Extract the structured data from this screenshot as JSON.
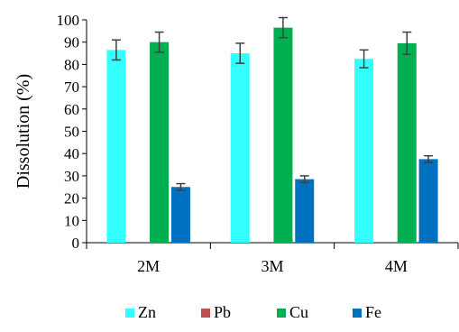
{
  "chart_data": {
    "type": "bar",
    "title": "",
    "xlabel": "",
    "ylabel": "Dissolution (%)",
    "ylim": [
      0,
      100
    ],
    "yticks": [
      0,
      10,
      20,
      30,
      40,
      50,
      60,
      70,
      80,
      90,
      100
    ],
    "categories": [
      "2M",
      "3M",
      "4M"
    ],
    "grid": false,
    "legend_position": "bottom",
    "series": [
      {
        "name": "Zn",
        "color": "#33FFFF",
        "values": [
          86.5,
          85.0,
          82.5
        ],
        "errors": [
          4.5,
          4.5,
          4.0
        ]
      },
      {
        "name": "Pb",
        "color": "#C0504D",
        "values": [
          0,
          0,
          0
        ],
        "errors": [
          0,
          0,
          0
        ]
      },
      {
        "name": "Cu",
        "color": "#00B050",
        "values": [
          90.0,
          96.5,
          89.5
        ],
        "errors": [
          4.5,
          4.5,
          5.0
        ]
      },
      {
        "name": "Fe",
        "color": "#0070C0",
        "values": [
          25.0,
          28.5,
          37.5
        ],
        "errors": [
          1.5,
          1.5,
          1.5
        ]
      }
    ]
  }
}
